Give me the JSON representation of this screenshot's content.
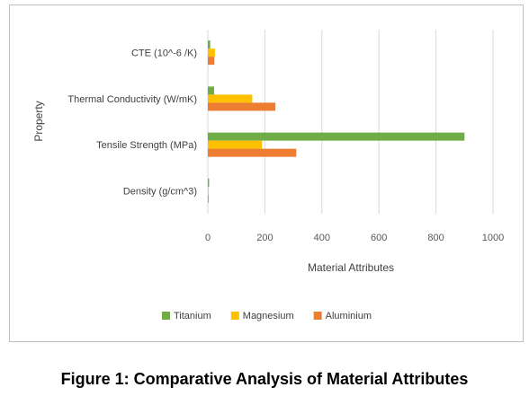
{
  "chart_data": {
    "type": "bar",
    "orientation": "horizontal",
    "categories": [
      "Density (g/cm^3)",
      "Tensile Strength (MPa)",
      "Thermal Conductivity (W/mK)",
      "CTE (10^-6 /K)"
    ],
    "series": [
      {
        "name": "Titanium",
        "color": "#70ad47",
        "values": [
          4.5,
          900,
          22,
          8.6
        ]
      },
      {
        "name": "Magnesium",
        "color": "#ffc000",
        "values": [
          1.7,
          190,
          156,
          25
        ]
      },
      {
        "name": "Aluminium",
        "color": "#ed7d31",
        "values": [
          2.7,
          310,
          237,
          23
        ]
      }
    ],
    "xlabel": "Material Attributes",
    "ylabel": "Property",
    "xlim": [
      0,
      1000
    ],
    "xticks": [
      0,
      200,
      400,
      600,
      800,
      1000
    ],
    "grid": true,
    "legend": "bottom"
  },
  "caption": "Figure 1: Comparative Analysis of Material Attributes"
}
